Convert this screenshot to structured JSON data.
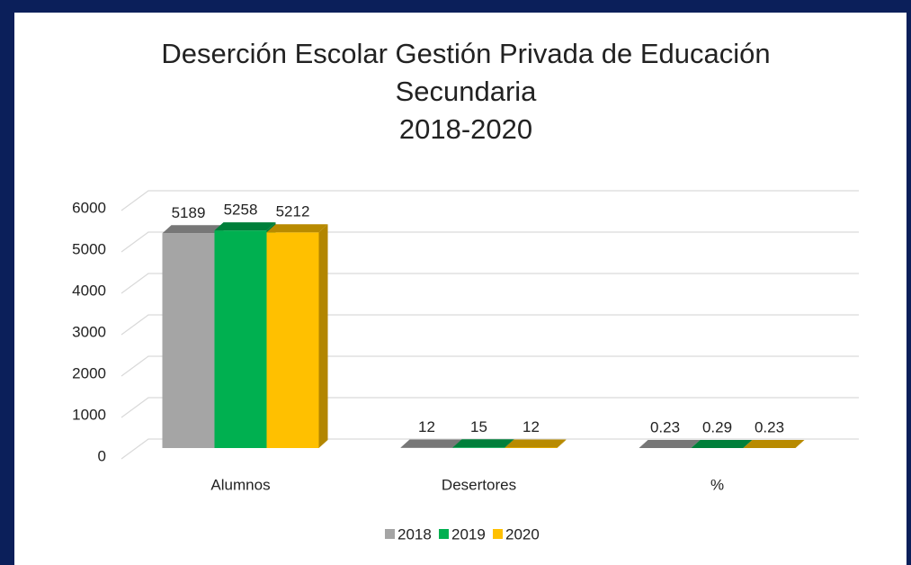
{
  "chart_data": {
    "type": "bar3d",
    "title": [
      "Deserción Escolar Gestión Privada de Educación",
      "Secundaria",
      "2018-2020"
    ],
    "categories": [
      "Alumnos",
      "Desertores",
      "%"
    ],
    "series": [
      {
        "name": "2018",
        "color": "#a5a5a5",
        "values": [
          5189,
          12,
          0.23
        ]
      },
      {
        "name": "2019",
        "color": "#00b050",
        "values": [
          5258,
          15,
          0.29
        ]
      },
      {
        "name": "2020",
        "color": "#ffc000",
        "values": [
          5212,
          12,
          0.23
        ]
      }
    ],
    "ylim": [
      0,
      6000
    ],
    "yticks": [
      0,
      1000,
      2000,
      3000,
      4000,
      5000,
      6000
    ],
    "grid": true,
    "legend": "bottom"
  }
}
